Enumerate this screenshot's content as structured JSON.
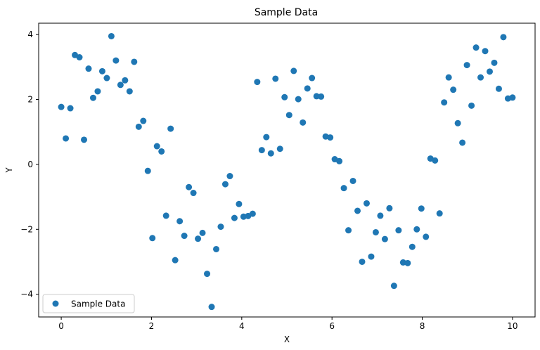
{
  "chart_data": {
    "type": "scatter",
    "title": "Sample Data",
    "xlabel": "X",
    "ylabel": "Y",
    "xlim": [
      -0.5,
      10.5
    ],
    "ylim": [
      -4.7,
      4.35
    ],
    "xticks": [
      0,
      2,
      4,
      6,
      8,
      10
    ],
    "yticks": [
      -4,
      -2,
      0,
      2,
      4
    ],
    "grid": false,
    "legend_position": "lower-left",
    "series": [
      {
        "name": "Sample Data",
        "color": "#1f77b4",
        "x": [
          0.0,
          0.101,
          0.202,
          0.303,
          0.404,
          0.505,
          0.606,
          0.707,
          0.808,
          0.909,
          1.01,
          1.111,
          1.212,
          1.313,
          1.414,
          1.515,
          1.616,
          1.717,
          1.818,
          1.919,
          2.02,
          2.121,
          2.222,
          2.323,
          2.424,
          2.525,
          2.626,
          2.727,
          2.828,
          2.929,
          3.03,
          3.131,
          3.232,
          3.333,
          3.434,
          3.535,
          3.636,
          3.737,
          3.838,
          3.939,
          4.04,
          4.141,
          4.242,
          4.343,
          4.444,
          4.545,
          4.646,
          4.747,
          4.848,
          4.949,
          5.051,
          5.152,
          5.253,
          5.354,
          5.455,
          5.556,
          5.657,
          5.758,
          5.859,
          5.96,
          6.061,
          6.162,
          6.263,
          6.364,
          6.465,
          6.566,
          6.667,
          6.768,
          6.869,
          6.97,
          7.071,
          7.172,
          7.273,
          7.374,
          7.475,
          7.576,
          7.677,
          7.778,
          7.879,
          7.98,
          8.081,
          8.182,
          8.283,
          8.384,
          8.485,
          8.586,
          8.687,
          8.788,
          8.889,
          8.99,
          9.091,
          9.192,
          9.293,
          9.394,
          9.495,
          9.596,
          9.697,
          9.798,
          9.899,
          10.0
        ],
        "y": [
          1.77,
          0.8,
          1.73,
          3.37,
          3.3,
          0.76,
          2.95,
          2.05,
          2.25,
          2.87,
          2.66,
          3.95,
          3.2,
          2.45,
          2.59,
          2.25,
          3.16,
          1.16,
          1.34,
          -0.2,
          -2.27,
          0.56,
          0.4,
          -1.58,
          1.1,
          -2.95,
          -1.75,
          -2.2,
          -0.7,
          -0.88,
          -2.29,
          -2.11,
          -3.37,
          -4.39,
          -2.61,
          -1.92,
          -0.61,
          -0.36,
          -1.65,
          -1.22,
          -1.61,
          -1.59,
          -1.52,
          2.54,
          0.44,
          0.84,
          0.34,
          2.64,
          0.48,
          2.07,
          1.52,
          2.88,
          2.01,
          1.29,
          2.34,
          2.66,
          2.1,
          2.09,
          0.86,
          0.83,
          0.16,
          0.1,
          -0.73,
          -2.03,
          -0.51,
          -1.43,
          -3.0,
          -1.2,
          -2.84,
          -2.09,
          -1.58,
          -2.3,
          -1.35,
          -3.74,
          -2.03,
          -3.02,
          -3.04,
          -2.54,
          -2.0,
          -1.36,
          -2.23,
          0.18,
          0.12,
          -1.51,
          1.91,
          2.68,
          2.3,
          1.27,
          0.67,
          3.06,
          1.81,
          3.6,
          2.68,
          3.49,
          2.86,
          3.13,
          2.33,
          3.92,
          2.03,
          2.06
        ]
      }
    ]
  }
}
